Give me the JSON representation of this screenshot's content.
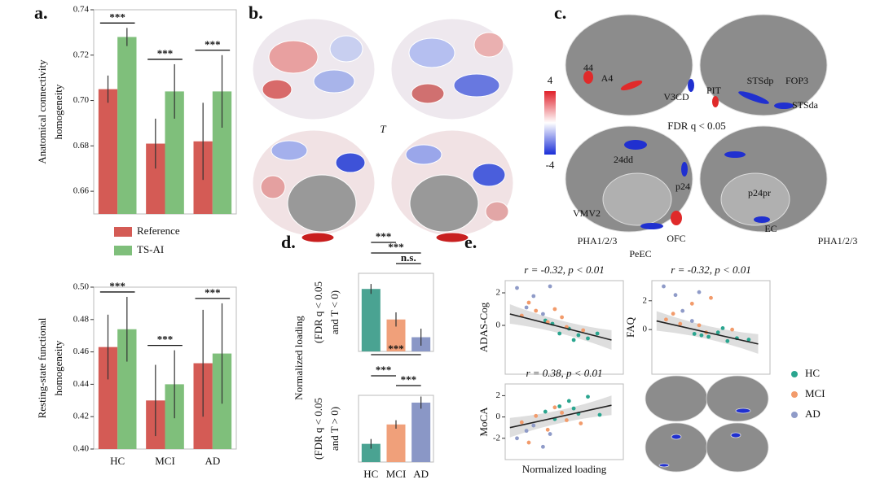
{
  "panels": [
    "a.",
    "b.",
    "c.",
    "d.",
    "e."
  ],
  "panel_b": {
    "symbol": "T",
    "colorbar_ticks": [
      4,
      -4
    ]
  },
  "panel_c": {
    "threshold": "FDR q < 0.05",
    "regions": [
      "44",
      "A4",
      "V3CD",
      "PIT",
      "STSdp",
      "FOP3",
      "STSda",
      "24dd",
      "p24",
      "p24pr",
      "VMV2",
      "PHA1/2/3",
      "OFC",
      "PeEC",
      "EC",
      "PHA1/2/3"
    ]
  },
  "chart_data": [
    {
      "type": "bar",
      "ylabel_lines": [
        "Anatomical connectivity",
        "homogeneity"
      ],
      "ylim": [
        0.65,
        0.74
      ],
      "yticks": [
        0.66,
        0.68,
        {
          "value": 0.7,
          "label": "0.70"
        },
        0.72,
        0.74
      ],
      "series": [
        {
          "name": "Reference",
          "color": "#d45b55",
          "values": [
            0.705,
            0.681,
            0.682
          ],
          "errors": [
            0.006,
            0.011,
            0.017
          ]
        },
        {
          "name": "TS-AI",
          "color": "#7fbf7b",
          "values": [
            0.728,
            0.704,
            0.704
          ],
          "errors": [
            0.004,
            0.012,
            0.016
          ]
        }
      ],
      "annotations": [
        "***",
        "***",
        "***"
      ]
    },
    {
      "type": "bar",
      "ylabel_lines": [
        "Resting-state functional",
        "homogeneity"
      ],
      "categories": [
        "HC",
        "MCI",
        "AD"
      ],
      "ylim": [
        0.4,
        0.5
      ],
      "yticks": [
        {
          "value": 0.4,
          "label": "0.40"
        },
        0.42,
        0.44,
        0.46,
        0.48,
        {
          "value": 0.5,
          "label": "0.50"
        }
      ],
      "series": [
        {
          "color": "#d45b55",
          "values": [
            0.463,
            0.43,
            0.453
          ],
          "errors": [
            0.02,
            0.022,
            0.033
          ]
        },
        {
          "color": "#7fbf7b",
          "values": [
            0.474,
            0.44,
            0.459
          ],
          "errors": [
            0.02,
            0.021,
            0.031
          ]
        }
      ],
      "annotations": [
        "***",
        "***",
        "***"
      ]
    },
    {
      "type": "bar",
      "ylabel": "Normalized loading",
      "ylabel_lines": [
        "(FDR q < 0.05",
        "and T < 0)"
      ],
      "ylim": [
        0,
        1.1
      ],
      "values": [
        0.88,
        0.45,
        0.2
      ],
      "errors": [
        0.07,
        0.1,
        0.12
      ],
      "colors": [
        "#4aa392",
        "#f0a07a",
        "#8a97c6"
      ],
      "annotations": [
        "***",
        "***",
        "n.s."
      ]
    },
    {
      "type": "bar",
      "ylabel_lines": [
        "(FDR q < 0.05",
        "and T > 0)"
      ],
      "categories": [
        "HC",
        "MCI",
        "AD"
      ],
      "ylim": [
        0,
        1.1
      ],
      "values": [
        0.3,
        0.62,
        0.98
      ],
      "errors": [
        0.08,
        0.07,
        0.1
      ],
      "colors": [
        "#4aa392",
        "#f0a07a",
        "#8a97c6"
      ],
      "annotations": [
        "***",
        "***",
        "***"
      ]
    },
    {
      "type": "scatter",
      "title": "r = -0.32, p < 0.01",
      "ylabel": "ADAS-Cog",
      "xlim": [
        -1.5,
        3.5
      ],
      "ylim": [
        -3,
        2.75
      ],
      "yticks": [
        0,
        2
      ],
      "series": [
        {
          "name": "HC",
          "color": "#2aa58f",
          "x": [
            0.2,
            0.8,
            1.2,
            1.6,
            2.0,
            0.5,
            1.4,
            2.4
          ],
          "y": [
            0.3,
            -0.5,
            -0.2,
            -0.6,
            -0.8,
            0.1,
            -0.9,
            -0.5
          ]
        },
        {
          "name": "MCI",
          "color": "#f29b6b",
          "x": [
            -0.8,
            -0.2,
            0.3,
            0.9,
            1.1,
            -0.5,
            0.6,
            1.8
          ],
          "y": [
            0.6,
            0.9,
            0.2,
            0.5,
            -0.1,
            1.4,
            1.0,
            -0.3
          ]
        },
        {
          "name": "AD",
          "color": "#8f9bc8",
          "x": [
            -1.0,
            -0.6,
            -0.3,
            0.1,
            0.4
          ],
          "y": [
            2.3,
            1.1,
            1.8,
            0.7,
            2.4
          ]
        }
      ],
      "trend": {
        "x": [
          -1.3,
          3.0
        ],
        "y": [
          0.7,
          -0.9
        ]
      }
    },
    {
      "type": "scatter",
      "title": "r = -0.32, p < 0.01",
      "ylabel": "FAQ",
      "xlim": [
        -1.5,
        3.5
      ],
      "ylim": [
        -3.1,
        3.4
      ],
      "yticks": [
        0,
        2
      ],
      "series": [
        {
          "color": "#2aa58f",
          "x": [
            0.3,
            0.9,
            1.3,
            1.7,
            2.1,
            0.6,
            1.5,
            2.6
          ],
          "y": [
            -0.3,
            -0.5,
            -0.2,
            -0.8,
            -0.6,
            -0.4,
            0.1,
            -0.7
          ]
        },
        {
          "color": "#f29b6b",
          "x": [
            -0.9,
            -0.3,
            0.2,
            0.8,
            1.0,
            -0.6,
            0.5,
            1.9
          ],
          "y": [
            0.7,
            0.4,
            1.8,
            -0.2,
            2.2,
            1.1,
            0.3,
            0.0
          ]
        },
        {
          "color": "#8f9bc8",
          "x": [
            -1.0,
            -0.5,
            -0.2,
            0.2,
            0.5
          ],
          "y": [
            3.0,
            2.4,
            1.3,
            0.6,
            2.6
          ]
        }
      ],
      "trend": {
        "x": [
          -1.3,
          3.0
        ],
        "y": [
          0.6,
          -1.0
        ]
      }
    },
    {
      "type": "scatter",
      "title": "r = 0.38, p < 0.01",
      "ylabel": "MoCA",
      "xlabel": "Normalized loading",
      "xlim": [
        -1.5,
        3.5
      ],
      "ylim": [
        -4,
        3.1
      ],
      "yticks": [
        -2,
        0,
        2
      ],
      "series": [
        {
          "color": "#2aa58f",
          "x": [
            0.2,
            0.8,
            1.2,
            1.6,
            2.0,
            0.6,
            1.4,
            2.5
          ],
          "y": [
            0.5,
            1.0,
            1.5,
            0.3,
            1.9,
            -0.2,
            0.8,
            0.2
          ]
        },
        {
          "color": "#f29b6b",
          "x": [
            -0.8,
            -0.2,
            0.3,
            0.9,
            1.1,
            -0.5,
            0.6,
            1.7
          ],
          "y": [
            -0.5,
            0.1,
            -1.2,
            0.4,
            -0.3,
            -2.4,
            0.9,
            -0.6
          ]
        },
        {
          "color": "#8f9bc8",
          "x": [
            -1.0,
            -0.6,
            -0.3,
            0.1,
            0.4
          ],
          "y": [
            -2.0,
            -1.3,
            -0.8,
            -2.8,
            -1.6
          ]
        }
      ],
      "trend": {
        "x": [
          -1.3,
          3.0
        ],
        "y": [
          -1.0,
          1.1
        ]
      }
    }
  ]
}
